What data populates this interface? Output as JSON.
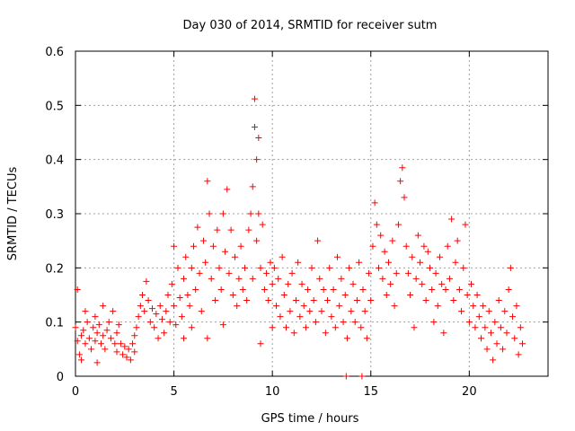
{
  "chart_data": {
    "type": "scatter",
    "title": "Day 030 of 2014, SRMTID for receiver sutm",
    "xlabel": "GPS time / hours",
    "ylabel": "SRMTID / TECUs",
    "xlim": [
      0,
      24
    ],
    "ylim": [
      0,
      0.6
    ],
    "xticks": [
      0,
      5,
      10,
      15,
      20
    ],
    "yticks": [
      0,
      0.1,
      0.2,
      0.3,
      0.4,
      0.5,
      0.6
    ],
    "xtick_labels": [
      "0",
      "5",
      "10",
      "15",
      "20"
    ],
    "ytick_labels": [
      "0",
      "0.1",
      "0.2",
      "0.3",
      "0.4",
      "0.5",
      "0.6"
    ],
    "grid": true,
    "marker": "+",
    "color": "#ff0000",
    "series": [
      {
        "name": "SRMTID",
        "points": [
          [
            0.0,
            0.09
          ],
          [
            0.1,
            0.16
          ],
          [
            0.1,
            0.065
          ],
          [
            0.2,
            0.04
          ],
          [
            0.3,
            0.075
          ],
          [
            0.3,
            0.03
          ],
          [
            0.4,
            0.085
          ],
          [
            0.5,
            0.06
          ],
          [
            0.5,
            0.12
          ],
          [
            0.6,
            0.1
          ],
          [
            0.7,
            0.07
          ],
          [
            0.8,
            0.05
          ],
          [
            0.9,
            0.09
          ],
          [
            1.0,
            0.065
          ],
          [
            1.0,
            0.11
          ],
          [
            1.1,
            0.08
          ],
          [
            1.1,
            0.025
          ],
          [
            1.2,
            0.095
          ],
          [
            1.3,
            0.06
          ],
          [
            1.4,
            0.075
          ],
          [
            1.4,
            0.13
          ],
          [
            1.5,
            0.05
          ],
          [
            1.6,
            0.085
          ],
          [
            1.7,
            0.1
          ],
          [
            1.8,
            0.07
          ],
          [
            1.9,
            0.12
          ],
          [
            2.0,
            0.06
          ],
          [
            2.1,
            0.08
          ],
          [
            2.1,
            0.045
          ],
          [
            2.2,
            0.095
          ],
          [
            2.3,
            0.06
          ],
          [
            2.4,
            0.04
          ],
          [
            2.5,
            0.055
          ],
          [
            2.6,
            0.035
          ],
          [
            2.7,
            0.05
          ],
          [
            2.8,
            0.03
          ],
          [
            2.9,
            0.06
          ],
          [
            3.0,
            0.045
          ],
          [
            3.0,
            0.075
          ],
          [
            3.1,
            0.09
          ],
          [
            3.2,
            0.11
          ],
          [
            3.3,
            0.13
          ],
          [
            3.4,
            0.15
          ],
          [
            3.5,
            0.12
          ],
          [
            3.6,
            0.175
          ],
          [
            3.7,
            0.14
          ],
          [
            3.8,
            0.1
          ],
          [
            3.9,
            0.125
          ],
          [
            4.0,
            0.09
          ],
          [
            4.1,
            0.115
          ],
          [
            4.2,
            0.07
          ],
          [
            4.3,
            0.13
          ],
          [
            4.4,
            0.105
          ],
          [
            4.5,
            0.08
          ],
          [
            4.6,
            0.12
          ],
          [
            4.7,
            0.15
          ],
          [
            4.8,
            0.1
          ],
          [
            4.9,
            0.17
          ],
          [
            5.0,
            0.13
          ],
          [
            5.0,
            0.24
          ],
          [
            5.1,
            0.095
          ],
          [
            5.2,
            0.2
          ],
          [
            5.3,
            0.145
          ],
          [
            5.4,
            0.11
          ],
          [
            5.5,
            0.18
          ],
          [
            5.5,
            0.07
          ],
          [
            5.6,
            0.22
          ],
          [
            5.7,
            0.15
          ],
          [
            5.8,
            0.13
          ],
          [
            5.9,
            0.2
          ],
          [
            5.9,
            0.09
          ],
          [
            6.0,
            0.24
          ],
          [
            6.1,
            0.16
          ],
          [
            6.2,
            0.275
          ],
          [
            6.3,
            0.19
          ],
          [
            6.4,
            0.12
          ],
          [
            6.5,
            0.25
          ],
          [
            6.6,
            0.21
          ],
          [
            6.7,
            0.36
          ],
          [
            6.7,
            0.07
          ],
          [
            6.8,
            0.3
          ],
          [
            6.9,
            0.18
          ],
          [
            7.0,
            0.24
          ],
          [
            7.1,
            0.14
          ],
          [
            7.2,
            0.27
          ],
          [
            7.3,
            0.2
          ],
          [
            7.4,
            0.16
          ],
          [
            7.5,
            0.3
          ],
          [
            7.5,
            0.095
          ],
          [
            7.6,
            0.23
          ],
          [
            7.7,
            0.345
          ],
          [
            7.8,
            0.19
          ],
          [
            7.9,
            0.27
          ],
          [
            8.0,
            0.15
          ],
          [
            8.1,
            0.22
          ],
          [
            8.2,
            0.13
          ],
          [
            8.3,
            0.18
          ],
          [
            8.4,
            0.24
          ],
          [
            8.5,
            0.16
          ],
          [
            8.6,
            0.2
          ],
          [
            8.7,
            0.14
          ],
          [
            8.8,
            0.27
          ],
          [
            8.9,
            0.3
          ],
          [
            9.0,
            0.35
          ],
          [
            9.0,
            0.18
          ],
          [
            9.1,
            0.46
          ],
          [
            9.1,
            0.512
          ],
          [
            9.2,
            0.4
          ],
          [
            9.2,
            0.25
          ],
          [
            9.3,
            0.44
          ],
          [
            9.3,
            0.3
          ],
          [
            9.4,
            0.2
          ],
          [
            9.4,
            0.06
          ],
          [
            9.5,
            0.28
          ],
          [
            9.6,
            0.16
          ],
          [
            9.7,
            0.19
          ],
          [
            9.8,
            0.14
          ],
          [
            9.9,
            0.21
          ],
          [
            10.0,
            0.17
          ],
          [
            10.0,
            0.09
          ],
          [
            10.1,
            0.2
          ],
          [
            10.2,
            0.13
          ],
          [
            10.3,
            0.18
          ],
          [
            10.4,
            0.11
          ],
          [
            10.5,
            0.22
          ],
          [
            10.6,
            0.15
          ],
          [
            10.7,
            0.09
          ],
          [
            10.8,
            0.17
          ],
          [
            10.9,
            0.12
          ],
          [
            11.0,
            0.19
          ],
          [
            11.1,
            0.08
          ],
          [
            11.2,
            0.14
          ],
          [
            11.3,
            0.21
          ],
          [
            11.4,
            0.11
          ],
          [
            11.5,
            0.17
          ],
          [
            11.6,
            0.13
          ],
          [
            11.7,
            0.09
          ],
          [
            11.8,
            0.16
          ],
          [
            11.9,
            0.12
          ],
          [
            12.0,
            0.2
          ],
          [
            12.1,
            0.14
          ],
          [
            12.2,
            0.1
          ],
          [
            12.3,
            0.25
          ],
          [
            12.4,
            0.18
          ],
          [
            12.5,
            0.12
          ],
          [
            12.6,
            0.16
          ],
          [
            12.7,
            0.08
          ],
          [
            12.8,
            0.14
          ],
          [
            12.9,
            0.2
          ],
          [
            13.0,
            0.11
          ],
          [
            13.1,
            0.16
          ],
          [
            13.2,
            0.09
          ],
          [
            13.3,
            0.22
          ],
          [
            13.4,
            0.13
          ],
          [
            13.5,
            0.18
          ],
          [
            13.6,
            0.1
          ],
          [
            13.7,
            0.15
          ],
          [
            13.8,
            0.07
          ],
          [
            13.9,
            0.2
          ],
          [
            14.0,
            0.12
          ],
          [
            14.1,
            0.17
          ],
          [
            14.2,
            0.1
          ],
          [
            14.3,
            0.14
          ],
          [
            14.4,
            0.21
          ],
          [
            14.5,
            0.09
          ],
          [
            14.6,
            0.16
          ],
          [
            14.7,
            0.12
          ],
          [
            14.8,
            0.07
          ],
          [
            14.9,
            0.19
          ],
          [
            15.0,
            0.14
          ],
          [
            15.1,
            0.24
          ],
          [
            15.2,
            0.32
          ],
          [
            15.3,
            0.28
          ],
          [
            15.4,
            0.2
          ],
          [
            15.5,
            0.26
          ],
          [
            15.6,
            0.18
          ],
          [
            15.7,
            0.23
          ],
          [
            15.8,
            0.15
          ],
          [
            15.9,
            0.21
          ],
          [
            16.0,
            0.17
          ],
          [
            16.1,
            0.25
          ],
          [
            16.2,
            0.13
          ],
          [
            16.3,
            0.19
          ],
          [
            16.4,
            0.28
          ],
          [
            16.5,
            0.36
          ],
          [
            16.6,
            0.385
          ],
          [
            16.7,
            0.33
          ],
          [
            16.8,
            0.24
          ],
          [
            16.9,
            0.19
          ],
          [
            17.0,
            0.15
          ],
          [
            17.1,
            0.22
          ],
          [
            17.2,
            0.09
          ],
          [
            17.3,
            0.18
          ],
          [
            17.4,
            0.26
          ],
          [
            17.5,
            0.21
          ],
          [
            17.6,
            0.17
          ],
          [
            17.7,
            0.24
          ],
          [
            17.8,
            0.14
          ],
          [
            17.9,
            0.23
          ],
          [
            18.0,
            0.2
          ],
          [
            18.1,
            0.16
          ],
          [
            18.2,
            0.1
          ],
          [
            18.3,
            0.19
          ],
          [
            18.4,
            0.13
          ],
          [
            18.5,
            0.22
          ],
          [
            18.6,
            0.17
          ],
          [
            18.7,
            0.08
          ],
          [
            18.8,
            0.16
          ],
          [
            18.9,
            0.24
          ],
          [
            19.0,
            0.18
          ],
          [
            19.1,
            0.29
          ],
          [
            19.2,
            0.14
          ],
          [
            19.3,
            0.21
          ],
          [
            19.4,
            0.25
          ],
          [
            19.5,
            0.16
          ],
          [
            19.6,
            0.12
          ],
          [
            19.7,
            0.2
          ],
          [
            19.8,
            0.28
          ],
          [
            19.9,
            0.15
          ],
          [
            20.0,
            0.1
          ],
          [
            20.1,
            0.17
          ],
          [
            20.2,
            0.13
          ],
          [
            20.3,
            0.09
          ],
          [
            20.4,
            0.15
          ],
          [
            20.5,
            0.11
          ],
          [
            20.6,
            0.07
          ],
          [
            20.7,
            0.13
          ],
          [
            20.8,
            0.09
          ],
          [
            20.9,
            0.05
          ],
          [
            21.0,
            0.12
          ],
          [
            21.1,
            0.08
          ],
          [
            21.2,
            0.03
          ],
          [
            21.3,
            0.1
          ],
          [
            21.4,
            0.06
          ],
          [
            21.5,
            0.14
          ],
          [
            21.6,
            0.09
          ],
          [
            21.7,
            0.05
          ],
          [
            21.8,
            0.12
          ],
          [
            21.9,
            0.08
          ],
          [
            22.0,
            0.16
          ],
          [
            22.1,
            0.2
          ],
          [
            22.2,
            0.11
          ],
          [
            22.3,
            0.07
          ],
          [
            22.4,
            0.13
          ],
          [
            22.5,
            0.04
          ],
          [
            22.6,
            0.09
          ],
          [
            22.7,
            0.06
          ],
          [
            13.75,
            0.0
          ],
          [
            14.55,
            0.0
          ]
        ]
      }
    ]
  }
}
